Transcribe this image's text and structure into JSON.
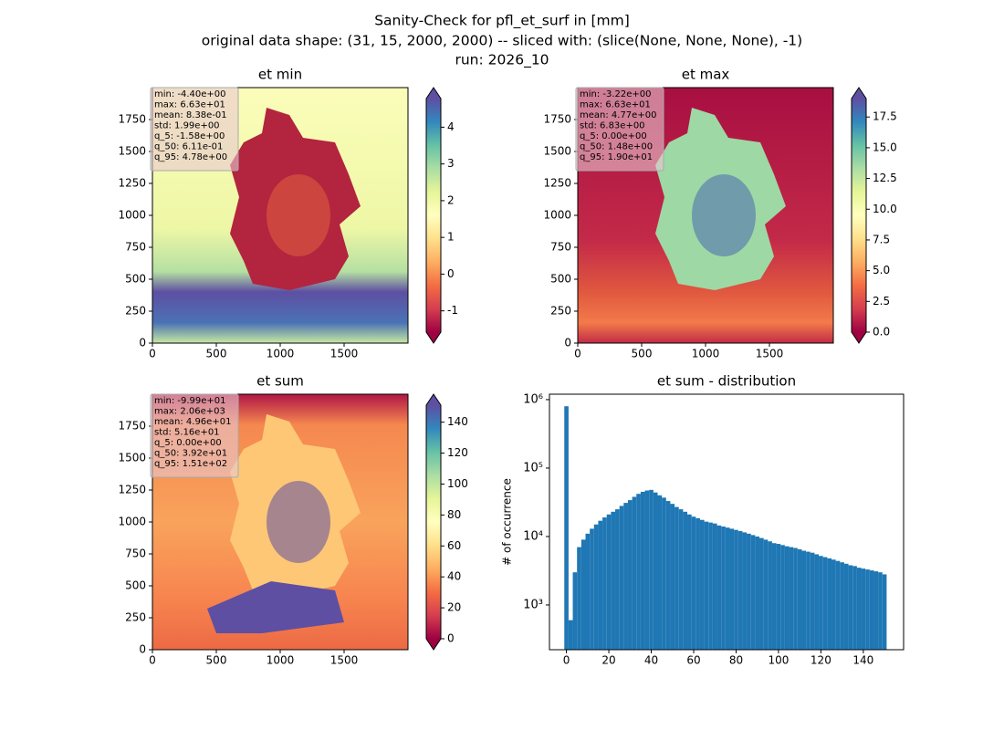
{
  "suptitle": [
    "Sanity-Check for pfl_et_surf in [mm]",
    "original data shape: (31, 15, 2000, 2000) -- sliced with: (slice(None, None, None), -1)",
    "run: 2026_10"
  ],
  "chart_data": [
    {
      "type": "heatmap",
      "title": "et min",
      "xlim": [
        0,
        2000
      ],
      "ylim": [
        0,
        2000
      ],
      "xticks": [
        0,
        500,
        1000,
        1500
      ],
      "yticks": [
        0,
        250,
        500,
        750,
        1000,
        1250,
        1500,
        1750
      ],
      "stats": [
        "min: -4.40e+00",
        "max: 6.63e+01",
        "mean: 8.38e-01",
        "std: 1.99e+00",
        "q_5: -1.58e+00",
        "q_50: 6.11e-01",
        "q_95: 4.78e+00"
      ],
      "clim": [
        -1.58,
        4.78
      ],
      "cticks": [
        -1,
        0,
        1,
        2,
        3,
        4
      ],
      "colors": [
        "#9e0142",
        "#d53e4f",
        "#f46d43",
        "#fdae61",
        "#fee08b",
        "#ffffbf",
        "#e6f598",
        "#abdda4",
        "#66c2a5",
        "#3288bd",
        "#5e4fa2"
      ]
    },
    {
      "type": "heatmap",
      "title": "et max",
      "xlim": [
        0,
        2000
      ],
      "ylim": [
        0,
        2000
      ],
      "xticks": [
        0,
        500,
        1000,
        1500
      ],
      "yticks": [
        0,
        250,
        500,
        750,
        1000,
        1250,
        1500,
        1750
      ],
      "stats": [
        "min: -3.22e+00",
        "max: 6.63e+01",
        "mean: 4.77e+00",
        "std: 6.83e+00",
        "q_5: 0.00e+00",
        "q_50: 1.48e+00",
        "q_95: 1.90e+01"
      ],
      "clim": [
        0,
        19.0
      ],
      "cticks": [
        {
          "value": 0,
          "label": "0.0"
        },
        2.5,
        {
          "value": 5,
          "label": "5.0"
        },
        7.5,
        {
          "value": 10,
          "label": "10.0"
        },
        12.5,
        {
          "value": 15,
          "label": "15.0"
        },
        17.5
      ],
      "colors": [
        "#9e0142",
        "#d53e4f",
        "#f46d43",
        "#fdae61",
        "#fee08b",
        "#ffffbf",
        "#e6f598",
        "#abdda4",
        "#66c2a5",
        "#3288bd",
        "#5e4fa2"
      ]
    },
    {
      "type": "heatmap",
      "title": "et sum",
      "xlim": [
        0,
        2000
      ],
      "ylim": [
        0,
        2000
      ],
      "xticks": [
        0,
        500,
        1000,
        1500
      ],
      "yticks": [
        0,
        250,
        500,
        750,
        1000,
        1250,
        1500,
        1750
      ],
      "stats": [
        "min: -9.99e+01",
        "max: 2.06e+03",
        "mean: 4.96e+01",
        "std: 5.16e+01",
        "q_5: 0.00e+00",
        "q_50: 3.92e+01",
        "q_95: 1.51e+02"
      ],
      "clim": [
        0,
        151
      ],
      "cticks": [
        0,
        20,
        40,
        60,
        80,
        100,
        120,
        140
      ],
      "colors": [
        "#9e0142",
        "#d53e4f",
        "#f46d43",
        "#fdae61",
        "#fee08b",
        "#ffffbf",
        "#e6f598",
        "#abdda4",
        "#66c2a5",
        "#3288bd",
        "#5e4fa2"
      ]
    },
    {
      "type": "histogram",
      "title": "et sum - distribution",
      "ylabel": "# of occurrence",
      "color": "#1f77b4",
      "log_y": true,
      "xlim": [
        -8,
        159
      ],
      "xticks": [
        0,
        20,
        40,
        60,
        80,
        100,
        120,
        140
      ],
      "ylim": [
        222,
        1200000
      ],
      "yticks": [
        {
          "value": 1000,
          "label": "10³"
        },
        {
          "value": 10000,
          "label": "10⁴"
        },
        {
          "value": 100000,
          "label": "10⁵"
        },
        {
          "value": 1000000,
          "label": "10⁶"
        }
      ],
      "bins": [
        -1,
        1,
        3,
        5,
        7,
        9,
        11,
        13,
        15,
        17,
        19,
        21,
        23,
        25,
        27,
        29,
        31,
        33,
        35,
        37,
        39,
        41,
        43,
        45,
        47,
        49,
        51,
        53,
        55,
        57,
        59,
        61,
        63,
        65,
        67,
        69,
        71,
        73,
        75,
        77,
        79,
        81,
        83,
        85,
        87,
        89,
        91,
        93,
        95,
        97,
        99,
        101,
        103,
        105,
        107,
        109,
        111,
        113,
        115,
        117,
        119,
        121,
        123,
        125,
        127,
        129,
        131,
        133,
        135,
        137,
        139,
        141,
        143,
        145,
        147,
        149,
        151
      ],
      "counts": [
        800000,
        600,
        3000,
        7000,
        9000,
        11000,
        13000,
        15000,
        17000,
        19000,
        21000,
        23000,
        25000,
        28000,
        31000,
        34000,
        38000,
        42000,
        45000,
        47000,
        48000,
        44000,
        40000,
        37000,
        33000,
        30000,
        27000,
        25000,
        23000,
        21000,
        19500,
        18500,
        17500,
        16500,
        16000,
        15500,
        14500,
        14000,
        13500,
        13000,
        12500,
        12000,
        11500,
        11000,
        10500,
        10000,
        9500,
        9000,
        8500,
        8000,
        7800,
        7500,
        7200,
        7000,
        6800,
        6500,
        6200,
        6000,
        5800,
        5500,
        5200,
        5000,
        4800,
        4600,
        4400,
        4200,
        4000,
        3800,
        3700,
        3500,
        3400,
        3300,
        3200,
        3100,
        3000,
        2800
      ]
    }
  ]
}
